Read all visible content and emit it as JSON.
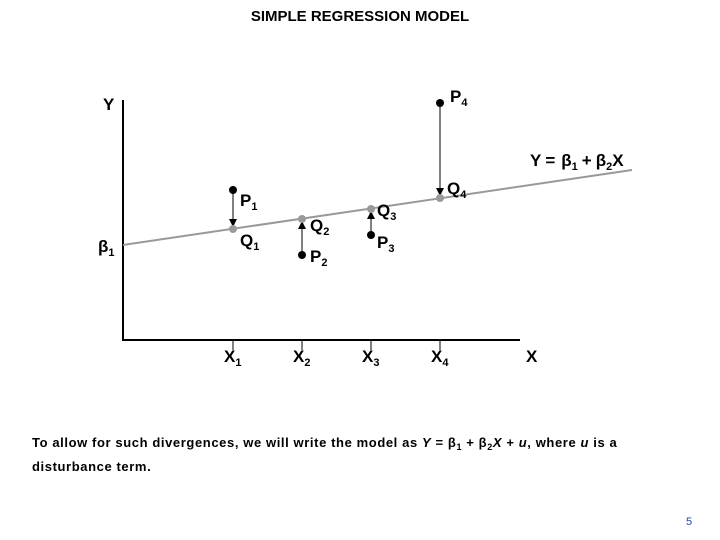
{
  "title": "SIMPLE REGRESSION MODEL",
  "y_axis_label": "Y",
  "x_axis_label": "X",
  "intercept_label": {
    "main": "β",
    "sub": "1"
  },
  "line_equation": {
    "y": "Y",
    "eq": "=",
    "b1": "β",
    "s1": "1",
    "plus": "+",
    "b2": "β",
    "s2": "2",
    "x": "X"
  },
  "x_labels": [
    {
      "main": "X",
      "sub": "1"
    },
    {
      "main": "X",
      "sub": "2"
    },
    {
      "main": "X",
      "sub": "3"
    },
    {
      "main": "X",
      "sub": "4"
    }
  ],
  "points": [
    {
      "p": {
        "main": "P",
        "sub": "1"
      },
      "q": {
        "main": "Q",
        "sub": "1"
      }
    },
    {
      "p": {
        "main": "P",
        "sub": "2"
      },
      "q": {
        "main": "Q",
        "sub": "2"
      }
    },
    {
      "p": {
        "main": "P",
        "sub": "3"
      },
      "q": {
        "main": "Q",
        "sub": "3"
      }
    },
    {
      "p": {
        "main": "P",
        "sub": "4"
      },
      "q": {
        "main": "Q",
        "sub": "4"
      }
    }
  ],
  "caption": [
    "To allow for such divergences, we will write the model as ",
    "Y",
    " = ",
    "β",
    "1",
    " + ",
    "β",
    "2",
    "X",
    " + ",
    "u",
    ", where ",
    "u",
    " is a disturbance term."
  ],
  "page_number": "5"
}
